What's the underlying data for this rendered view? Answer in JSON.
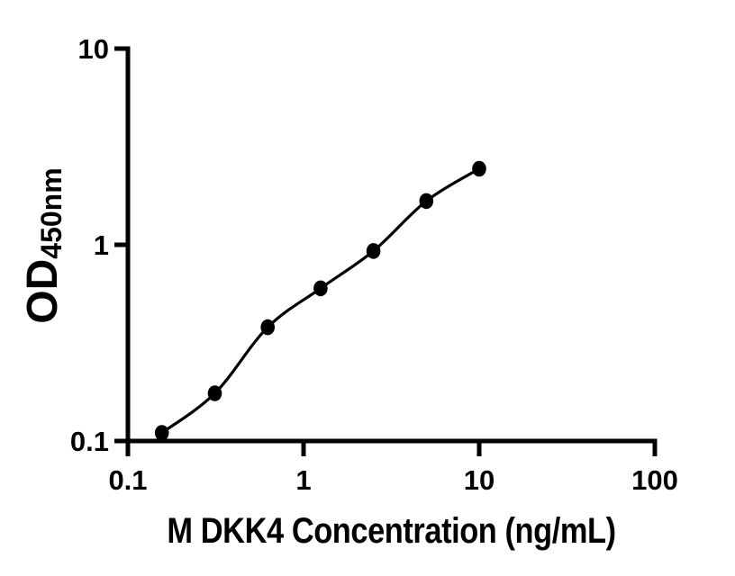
{
  "figure": {
    "background_color": "#ffffff",
    "ink_color": "#000000"
  },
  "chart_data": {
    "type": "scatter",
    "title": "",
    "xlabel": "M DKK4 Concentration (ng/mL)",
    "ylabel_main": "OD",
    "ylabel_sub": "450nm",
    "x_scale": "log",
    "y_scale": "log",
    "xlim": [
      0.1,
      100
    ],
    "ylim": [
      0.1,
      10
    ],
    "grid": false,
    "legend": null,
    "x_ticks": [
      {
        "value": 0.1,
        "label": "0.1"
      },
      {
        "value": 1,
        "label": "1"
      },
      {
        "value": 10,
        "label": "10"
      },
      {
        "value": 100,
        "label": "100"
      }
    ],
    "y_ticks": [
      {
        "value": 0.1,
        "label": "0.1"
      },
      {
        "value": 1,
        "label": "1"
      },
      {
        "value": 10,
        "label": "10"
      }
    ],
    "series": [
      {
        "name": "standard-curve",
        "marker": "filled-circle",
        "line": "smooth-fit",
        "color": "#000000",
        "points": [
          {
            "x": 0.156,
            "y": 0.11
          },
          {
            "x": 0.3125,
            "y": 0.175
          },
          {
            "x": 0.625,
            "y": 0.38
          },
          {
            "x": 1.25,
            "y": 0.6
          },
          {
            "x": 2.5,
            "y": 0.93
          },
          {
            "x": 5,
            "y": 1.67
          },
          {
            "x": 10,
            "y": 2.44
          }
        ]
      }
    ]
  }
}
